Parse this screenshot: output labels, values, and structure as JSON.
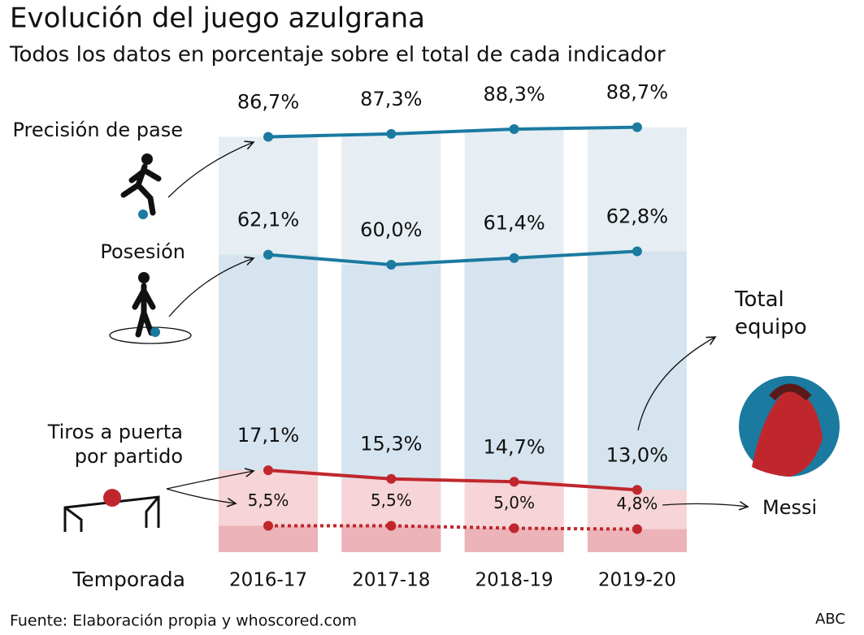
{
  "chart_data": {
    "type": "line",
    "title": "Evolución del juego azulgrana",
    "subtitle": "Todos los datos en porcentaje sobre el total de cada indicador",
    "x_label": "Temporada",
    "categories": [
      "2016-17",
      "2017-18",
      "2018-19",
      "2019-20"
    ],
    "ylim": [
      0,
      100
    ],
    "series": [
      {
        "name": "Precisión de pase",
        "color": "#1a7aa0",
        "band_color": "#e6eef3",
        "dashed": false,
        "values": [
          86.7,
          87.3,
          88.3,
          88.7
        ],
        "value_labels": [
          "86,7%",
          "87,3%",
          "88,3%",
          "88,7%"
        ]
      },
      {
        "name": "Posesión",
        "color": "#1a7aa0",
        "band_color": "#d5e4ee",
        "dashed": false,
        "values": [
          62.1,
          60.0,
          61.4,
          62.8
        ],
        "value_labels": [
          "62,1%",
          "60,0%",
          "61,4%",
          "62,8%"
        ]
      },
      {
        "name": "Tiros a puerta por partido",
        "color": "#c0272d",
        "band_color": "#f6d4d7",
        "dashed": false,
        "values": [
          17.1,
          15.3,
          14.7,
          13.0
        ],
        "value_labels": [
          "17,1%",
          "15,3%",
          "14,7%",
          "13,0%"
        ]
      },
      {
        "name": "Messi",
        "color": "#c0272d",
        "band_color": "#ecb3b8",
        "dashed": true,
        "values": [
          5.5,
          5.5,
          5.0,
          4.8
        ],
        "value_labels": [
          "5,5%",
          "5,5%",
          "5,0%",
          "4,8%"
        ]
      }
    ],
    "annotation": "Total equipo",
    "source": "Fuente: Elaboración propia y whoscored.com",
    "credit": "ABC"
  }
}
